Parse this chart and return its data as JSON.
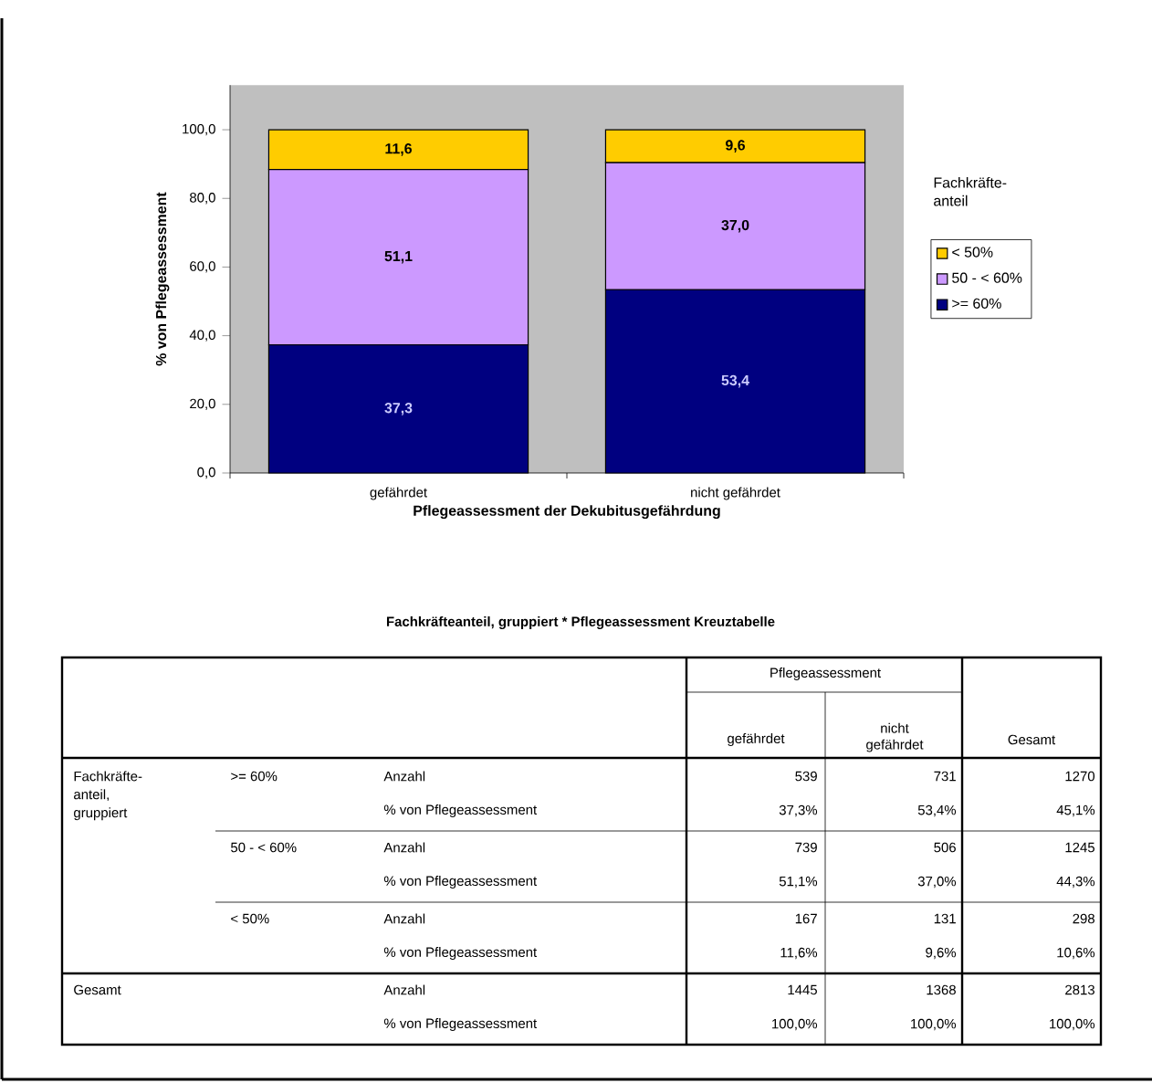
{
  "chart_data": {
    "type": "bar",
    "stacked": true,
    "categories": [
      "gefährdet",
      "nicht gefährdet"
    ],
    "xlabel": "Pflegeassessment der Dekubitusgefährdung",
    "ylabel": "% von Pflegeassessment",
    "legend_title": "Fachkräfte-anteil",
    "legend": "right",
    "ylim": [
      0,
      113
    ],
    "yticks": [
      {
        "value": 0,
        "label": "0,0"
      },
      {
        "value": 20,
        "label": "20,0"
      },
      {
        "value": 40,
        "label": "40,0"
      },
      {
        "value": 60,
        "label": "60,0"
      },
      {
        "value": 80,
        "label": "80,0"
      },
      {
        "value": 100,
        "label": "100,0"
      }
    ],
    "series": [
      {
        "name": ">= 60%",
        "color": "#000080",
        "values": [
          37.3,
          53.4
        ],
        "value_labels": [
          "37,3",
          "53,4"
        ]
      },
      {
        "name": "50 - < 60%",
        "color": "#cc99ff",
        "values": [
          51.1,
          37.0
        ],
        "value_labels": [
          "51,1",
          "37,0"
        ]
      },
      {
        "name": "< 50%",
        "color": "#ffcc00",
        "values": [
          11.6,
          9.6
        ],
        "value_labels": [
          "11,6",
          "9,6"
        ]
      }
    ],
    "annotations": [
      "Fachkräfteanteil, gruppiert * Pflegeassessment Kreuztabelle",
      "Pflegeassessment",
      "gefährdet",
      "nicht gefährdet",
      "Gesamt",
      "Fachkräfte-anteil, gruppiert",
      ">= 60%",
      "Anzahl",
      "539",
      "731",
      "1270",
      "% von Pflegeassessment",
      "37,3%",
      "53,4%",
      "45,1%",
      "50 - < 60%",
      "Anzahl",
      "739",
      "506",
      "1245",
      "% von Pflegeassessment",
      "51,1%",
      "37,0%",
      "44,3%",
      "< 50%",
      "Anzahl",
      "167",
      "131",
      "298",
      "% von Pflegeassessment",
      "11,6%",
      "9,6%",
      "10,6%",
      "Gesamt",
      "Anzahl",
      "1445",
      "1368",
      "2813",
      "% von Pflegeassessment",
      "100,0%",
      "100,0%",
      "100,0%"
    ]
  }
}
